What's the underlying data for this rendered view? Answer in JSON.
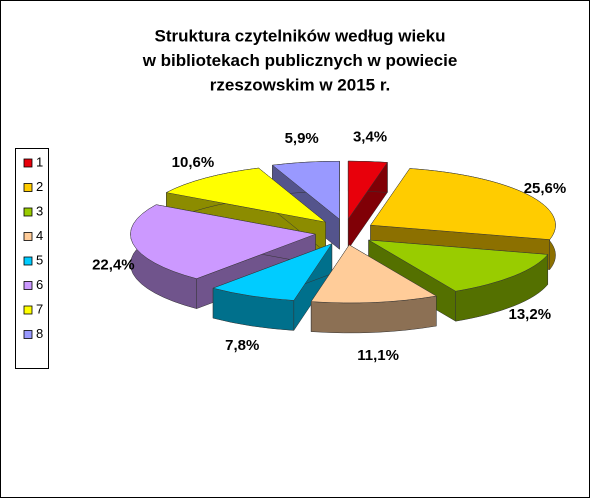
{
  "chart_data": {
    "type": "pie3d",
    "title": [
      "Struktura czytelników według wieku",
      "w bibliotekach publicznych w powiecie",
      "rzeszowskim w 2015 r."
    ],
    "series": [
      {
        "name": "1",
        "color": "#e8000b",
        "values": [
          3.4
        ],
        "value_labels": [
          "3,4%"
        ]
      },
      {
        "name": "2",
        "color": "#ffcc00",
        "values": [
          25.6
        ],
        "value_labels": [
          "25,6%"
        ]
      },
      {
        "name": "3",
        "color": "#99cc00",
        "values": [
          13.2
        ],
        "value_labels": [
          "13,2%"
        ]
      },
      {
        "name": "4",
        "color": "#ffcc99",
        "values": [
          11.1
        ],
        "value_labels": [
          "11,1%"
        ]
      },
      {
        "name": "5",
        "color": "#00ccff",
        "values": [
          7.8
        ],
        "value_labels": [
          "7,8%"
        ]
      },
      {
        "name": "6",
        "color": "#cc99ff",
        "values": [
          22.4
        ],
        "value_labels": [
          "22,4%"
        ]
      },
      {
        "name": "7",
        "color": "#ffff00",
        "values": [
          10.6
        ],
        "value_labels": [
          "10,6%"
        ]
      },
      {
        "name": "8",
        "color": "#9999ff",
        "values": [
          5.9
        ],
        "value_labels": [
          "5,9%"
        ]
      }
    ],
    "legend": "left"
  }
}
